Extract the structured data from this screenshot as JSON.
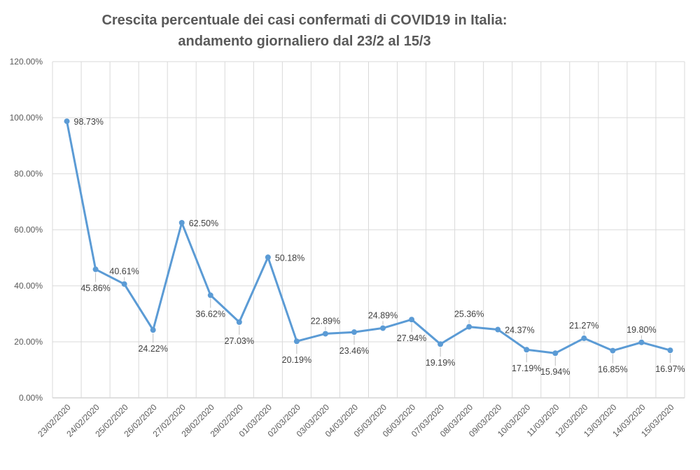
{
  "chart_data": {
    "type": "line",
    "title": "Crescita percentuale dei casi confermati di COVID19 in Italia:",
    "subtitle": "andamento giornaliero dal 23/2 al 15/3",
    "xlabel": "",
    "ylabel": "",
    "ylim": [
      0,
      120
    ],
    "ytick_labels": [
      "0.00%",
      "20.00%",
      "40.00%",
      "60.00%",
      "80.00%",
      "100.00%",
      "120.00%"
    ],
    "ytick_values": [
      0,
      20,
      40,
      60,
      80,
      100,
      120
    ],
    "grid": true,
    "legend": "none",
    "line_color": "#5b9bd5",
    "categories": [
      "23/02/2020",
      "24/02/2020",
      "25/02/2020",
      "26/02/2020",
      "27/02/2020",
      "28/02/2020",
      "29/02/2020",
      "01/03/2020",
      "02/03/2020",
      "03/03/2020",
      "04/03/2020",
      "05/03/2020",
      "06/03/2020",
      "07/03/2020",
      "08/03/2020",
      "09/03/2020",
      "10/03/2020",
      "11/03/2020",
      "12/03/2020",
      "13/03/2020",
      "14/03/2020",
      "15/03/2020"
    ],
    "values": [
      98.73,
      45.86,
      40.61,
      24.22,
      62.5,
      36.62,
      27.03,
      50.18,
      20.19,
      22.89,
      23.46,
      24.89,
      27.94,
      19.19,
      25.36,
      24.37,
      17.19,
      15.94,
      21.27,
      16.85,
      19.8,
      16.97
    ],
    "data_labels": [
      "98.73%",
      "45.86%",
      "40.61%",
      "24.22%",
      "62.50%",
      "36.62%",
      "27.03%",
      "50.18%",
      "20.19%",
      "22.89%",
      "23.46%",
      "24.89%",
      "27.94%",
      "19.19%",
      "25.36%",
      "24.37%",
      "17.19%",
      "15.94%",
      "21.27%",
      "16.85%",
      "19.80%",
      "16.97%"
    ]
  }
}
